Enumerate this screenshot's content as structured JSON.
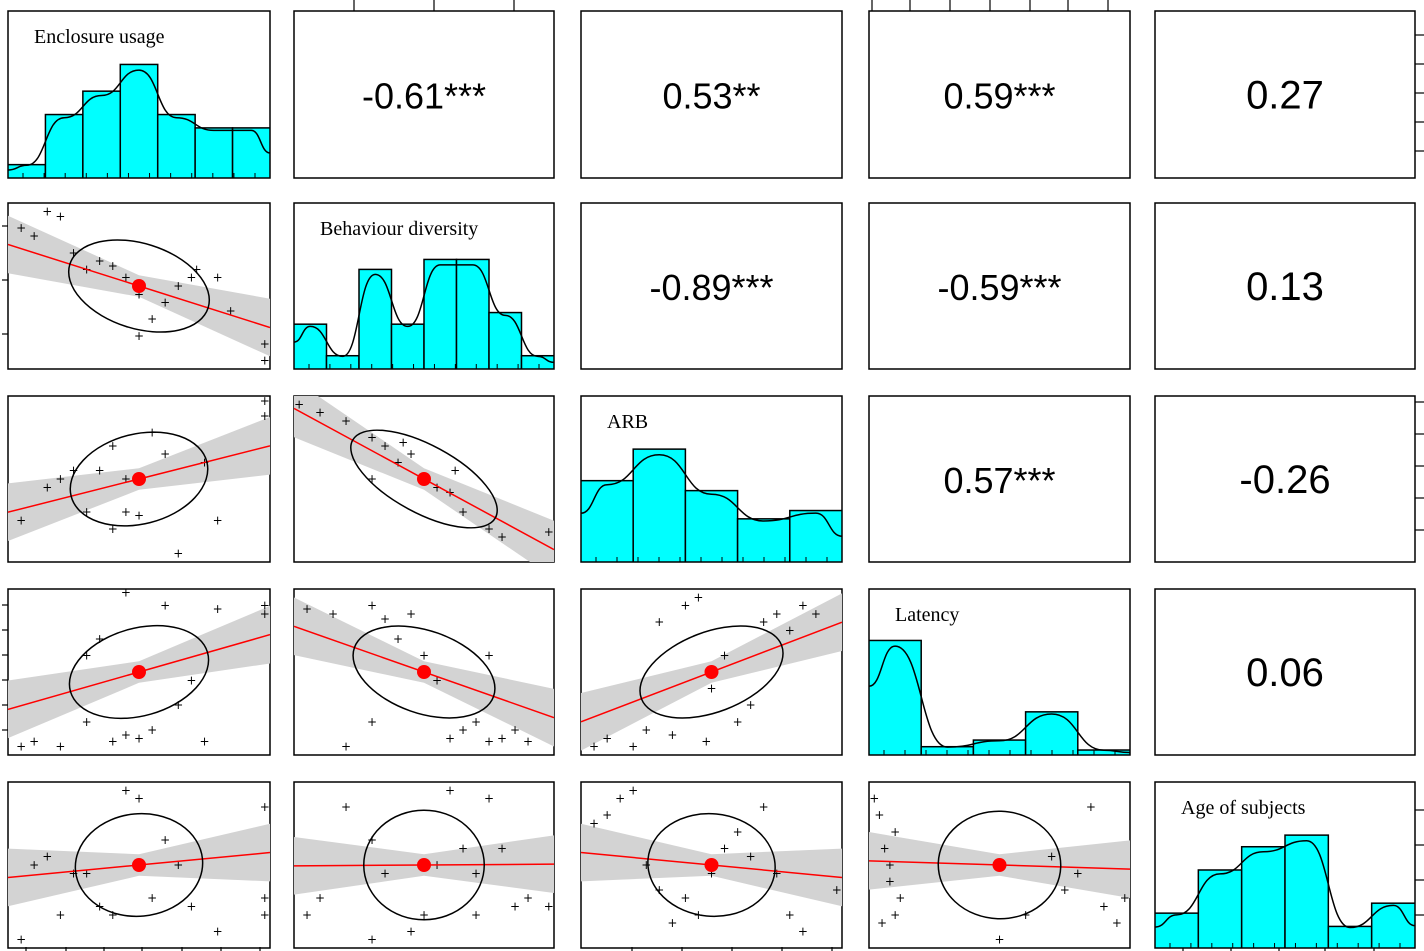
{
  "chart_data": {
    "type": "scatter",
    "title": "",
    "variables": [
      "Enclosure usage",
      "Behaviour diversity",
      "ARB",
      "Latency",
      "Age of subjects"
    ],
    "correlations": [
      {
        "row": 0,
        "col": 1,
        "label": "-0.61***",
        "r": -0.61,
        "significance": "***"
      },
      {
        "row": 0,
        "col": 2,
        "label": "0.53**",
        "r": 0.53,
        "significance": "**"
      },
      {
        "row": 0,
        "col": 3,
        "label": "0.59***",
        "r": 0.59,
        "significance": "***"
      },
      {
        "row": 0,
        "col": 4,
        "label": "0.27",
        "r": 0.27,
        "significance": ""
      },
      {
        "row": 1,
        "col": 2,
        "label": "-0.89***",
        "r": -0.89,
        "significance": "***"
      },
      {
        "row": 1,
        "col": 3,
        "label": "-0.59***",
        "r": -0.59,
        "significance": "***"
      },
      {
        "row": 1,
        "col": 4,
        "label": "0.13",
        "r": 0.13,
        "significance": ""
      },
      {
        "row": 2,
        "col": 3,
        "label": "0.57***",
        "r": 0.57,
        "significance": "***"
      },
      {
        "row": 2,
        "col": 4,
        "label": "-0.26",
        "r": -0.26,
        "significance": ""
      },
      {
        "row": 3,
        "col": 4,
        "label": "0.06",
        "r": 0.06,
        "significance": ""
      }
    ],
    "histograms": [
      {
        "variable": "Enclosure usage",
        "counts": [
          0.08,
          0.38,
          0.52,
          0.68,
          0.38,
          0.3,
          0.3
        ]
      },
      {
        "variable": "Behaviour diversity",
        "counts": [
          0.27,
          0.08,
          0.6,
          0.27,
          0.66,
          0.66,
          0.34,
          0.08
        ]
      },
      {
        "variable": "ARB",
        "counts": [
          0.49,
          0.68,
          0.43,
          0.26,
          0.31
        ]
      },
      {
        "variable": "Latency",
        "counts": [
          0.69,
          0.05,
          0.09,
          0.26,
          0.03
        ]
      },
      {
        "variable": "Age of subjects",
        "counts": [
          0.21,
          0.47,
          0.61,
          0.68,
          0.13,
          0.27
        ]
      }
    ],
    "scatter": [
      {
        "row": 1,
        "col": 0,
        "slope": -0.5,
        "points": [
          [
            0.05,
            0.85
          ],
          [
            0.1,
            0.8
          ],
          [
            0.15,
            0.95
          ],
          [
            0.2,
            0.92
          ],
          [
            0.25,
            0.7
          ],
          [
            0.3,
            0.6
          ],
          [
            0.35,
            0.65
          ],
          [
            0.4,
            0.62
          ],
          [
            0.45,
            0.55
          ],
          [
            0.5,
            0.45
          ],
          [
            0.55,
            0.3
          ],
          [
            0.6,
            0.4
          ],
          [
            0.65,
            0.5
          ],
          [
            0.7,
            0.55
          ],
          [
            0.72,
            0.6
          ],
          [
            0.8,
            0.55
          ],
          [
            0.85,
            0.35
          ],
          [
            0.98,
            0.15
          ],
          [
            0.98,
            0.05
          ],
          [
            0.5,
            0.2
          ]
        ]
      },
      {
        "row": 2,
        "col": 0,
        "slope": 0.4,
        "points": [
          [
            0.05,
            0.25
          ],
          [
            0.15,
            0.45
          ],
          [
            0.2,
            0.5
          ],
          [
            0.3,
            0.3
          ],
          [
            0.35,
            0.55
          ],
          [
            0.4,
            0.2
          ],
          [
            0.45,
            0.3
          ],
          [
            0.5,
            0.28
          ],
          [
            0.55,
            0.78
          ],
          [
            0.6,
            0.65
          ],
          [
            0.65,
            0.05
          ],
          [
            0.75,
            0.6
          ],
          [
            0.8,
            0.25
          ],
          [
            0.98,
            0.97
          ],
          [
            0.98,
            0.88
          ],
          [
            0.45,
            0.5
          ],
          [
            0.4,
            0.7
          ],
          [
            0.25,
            0.55
          ]
        ]
      },
      {
        "row": 2,
        "col": 1,
        "slope": -0.85,
        "points": [
          [
            0.02,
            0.95
          ],
          [
            0.1,
            0.9
          ],
          [
            0.2,
            0.85
          ],
          [
            0.3,
            0.75
          ],
          [
            0.35,
            0.7
          ],
          [
            0.4,
            0.6
          ],
          [
            0.45,
            0.65
          ],
          [
            0.5,
            0.5
          ],
          [
            0.55,
            0.45
          ],
          [
            0.6,
            0.42
          ],
          [
            0.62,
            0.55
          ],
          [
            0.65,
            0.3
          ],
          [
            0.75,
            0.2
          ],
          [
            0.8,
            0.15
          ],
          [
            0.98,
            0.18
          ],
          [
            0.3,
            0.5
          ],
          [
            0.42,
            0.72
          ]
        ]
      },
      {
        "row": 3,
        "col": 0,
        "slope": 0.45,
        "points": [
          [
            0.05,
            0.05
          ],
          [
            0.1,
            0.08
          ],
          [
            0.2,
            0.05
          ],
          [
            0.3,
            0.2
          ],
          [
            0.35,
            0.7
          ],
          [
            0.4,
            0.08
          ],
          [
            0.45,
            0.12
          ],
          [
            0.5,
            0.1
          ],
          [
            0.55,
            0.15
          ],
          [
            0.6,
            0.9
          ],
          [
            0.65,
            0.3
          ],
          [
            0.75,
            0.08
          ],
          [
            0.8,
            0.88
          ],
          [
            0.98,
            0.85
          ],
          [
            0.98,
            0.9
          ],
          [
            0.45,
            0.98
          ],
          [
            0.3,
            0.6
          ],
          [
            0.7,
            0.45
          ]
        ]
      },
      {
        "row": 3,
        "col": 1,
        "slope": -0.55,
        "points": [
          [
            0.05,
            0.88
          ],
          [
            0.15,
            0.85
          ],
          [
            0.3,
            0.9
          ],
          [
            0.35,
            0.82
          ],
          [
            0.4,
            0.7
          ],
          [
            0.45,
            0.85
          ],
          [
            0.5,
            0.6
          ],
          [
            0.55,
            0.45
          ],
          [
            0.6,
            0.1
          ],
          [
            0.65,
            0.15
          ],
          [
            0.7,
            0.2
          ],
          [
            0.75,
            0.08
          ],
          [
            0.8,
            0.1
          ],
          [
            0.85,
            0.15
          ],
          [
            0.9,
            0.08
          ],
          [
            0.2,
            0.05
          ],
          [
            0.3,
            0.2
          ],
          [
            0.75,
            0.6
          ]
        ]
      },
      {
        "row": 3,
        "col": 2,
        "slope": 0.6,
        "points": [
          [
            0.05,
            0.05
          ],
          [
            0.1,
            0.1
          ],
          [
            0.2,
            0.05
          ],
          [
            0.25,
            0.15
          ],
          [
            0.3,
            0.8
          ],
          [
            0.35,
            0.12
          ],
          [
            0.4,
            0.9
          ],
          [
            0.45,
            0.95
          ],
          [
            0.5,
            0.4
          ],
          [
            0.55,
            0.6
          ],
          [
            0.6,
            0.2
          ],
          [
            0.65,
            0.3
          ],
          [
            0.7,
            0.8
          ],
          [
            0.75,
            0.85
          ],
          [
            0.8,
            0.75
          ],
          [
            0.85,
            0.9
          ],
          [
            0.9,
            0.85
          ],
          [
            0.48,
            0.08
          ]
        ]
      },
      {
        "row": 4,
        "col": 0,
        "slope": 0.15,
        "points": [
          [
            0.05,
            0.05
          ],
          [
            0.1,
            0.5
          ],
          [
            0.15,
            0.55
          ],
          [
            0.2,
            0.2
          ],
          [
            0.25,
            0.45
          ],
          [
            0.3,
            0.45
          ],
          [
            0.35,
            0.25
          ],
          [
            0.4,
            0.2
          ],
          [
            0.45,
            0.95
          ],
          [
            0.5,
            0.9
          ],
          [
            0.55,
            0.3
          ],
          [
            0.6,
            0.65
          ],
          [
            0.65,
            0.5
          ],
          [
            0.7,
            0.25
          ],
          [
            0.8,
            0.1
          ],
          [
            0.98,
            0.85
          ],
          [
            0.98,
            0.3
          ],
          [
            0.98,
            0.2
          ]
        ]
      },
      {
        "row": 4,
        "col": 1,
        "slope": 0.01,
        "points": [
          [
            0.05,
            0.2
          ],
          [
            0.1,
            0.3
          ],
          [
            0.2,
            0.85
          ],
          [
            0.3,
            0.65
          ],
          [
            0.35,
            0.45
          ],
          [
            0.45,
            0.1
          ],
          [
            0.5,
            0.2
          ],
          [
            0.55,
            0.5
          ],
          [
            0.6,
            0.95
          ],
          [
            0.65,
            0.6
          ],
          [
            0.7,
            0.45
          ],
          [
            0.75,
            0.9
          ],
          [
            0.8,
            0.6
          ],
          [
            0.85,
            0.25
          ],
          [
            0.9,
            0.3
          ],
          [
            0.98,
            0.25
          ],
          [
            0.3,
            0.05
          ],
          [
            0.7,
            0.2
          ]
        ]
      },
      {
        "row": 4,
        "col": 2,
        "slope": -0.15,
        "points": [
          [
            0.05,
            0.75
          ],
          [
            0.1,
            0.8
          ],
          [
            0.15,
            0.9
          ],
          [
            0.2,
            0.95
          ],
          [
            0.25,
            0.5
          ],
          [
            0.3,
            0.35
          ],
          [
            0.35,
            0.15
          ],
          [
            0.4,
            0.3
          ],
          [
            0.45,
            0.2
          ],
          [
            0.5,
            0.45
          ],
          [
            0.55,
            0.6
          ],
          [
            0.6,
            0.7
          ],
          [
            0.65,
            0.55
          ],
          [
            0.7,
            0.85
          ],
          [
            0.75,
            0.45
          ],
          [
            0.8,
            0.2
          ],
          [
            0.85,
            0.1
          ],
          [
            0.98,
            0.35
          ]
        ]
      },
      {
        "row": 4,
        "col": 3,
        "slope": -0.05,
        "points": [
          [
            0.02,
            0.9
          ],
          [
            0.04,
            0.8
          ],
          [
            0.06,
            0.6
          ],
          [
            0.08,
            0.4
          ],
          [
            0.1,
            0.2
          ],
          [
            0.12,
            0.3
          ],
          [
            0.05,
            0.15
          ],
          [
            0.08,
            0.5
          ],
          [
            0.1,
            0.7
          ],
          [
            0.5,
            0.05
          ],
          [
            0.6,
            0.2
          ],
          [
            0.7,
            0.55
          ],
          [
            0.8,
            0.45
          ],
          [
            0.85,
            0.85
          ],
          [
            0.9,
            0.25
          ],
          [
            0.95,
            0.15
          ],
          [
            0.98,
            0.3
          ],
          [
            0.75,
            0.35
          ]
        ]
      }
    ]
  }
}
